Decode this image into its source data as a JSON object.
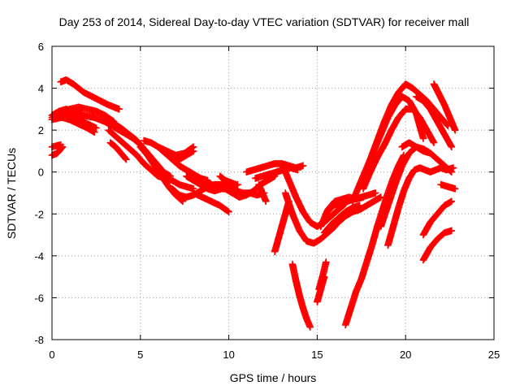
{
  "chart_data": {
    "type": "scatter",
    "title": "Day 253 of 2014, Sidereal Day-to-day VTEC variation (SDTVAR) for receiver mall",
    "xlabel": "GPS time / hours",
    "ylabel": "SDTVAR / TECUs",
    "xlim": [
      0,
      25
    ],
    "ylim": [
      -8,
      6
    ],
    "xticks": [
      0,
      5,
      10,
      15,
      20,
      25
    ],
    "yticks": [
      -8,
      -6,
      -4,
      -2,
      0,
      2,
      4,
      6
    ],
    "xtick_labels": [
      "0",
      "5",
      "10",
      "15",
      "20",
      "25"
    ],
    "ytick_labels": [
      "-8",
      "-6",
      "-4",
      "-2",
      "0",
      "2",
      "4",
      "6"
    ],
    "grid": true,
    "marker": "plus",
    "color": "#ff0000",
    "series": [
      {
        "x": [
          0.5,
          0.8,
          1.2,
          1.8,
          2.5,
          3.2,
          3.8
        ],
        "y": [
          4.3,
          4.4,
          4.2,
          3.8,
          3.5,
          3.2,
          3.0
        ]
      },
      {
        "x": [
          0.0,
          0.5,
          1.0,
          1.5,
          2.0,
          2.5,
          3.0,
          3.5
        ],
        "y": [
          2.6,
          2.8,
          3.0,
          3.1,
          3.0,
          2.9,
          2.7,
          2.4
        ]
      },
      {
        "x": [
          0.0,
          0.4,
          0.8,
          1.2,
          1.8,
          2.4,
          3.0,
          3.6,
          4.0,
          4.6,
          5.0,
          5.4,
          5.8,
          6.2
        ],
        "y": [
          2.7,
          2.9,
          3.0,
          2.9,
          2.7,
          2.6,
          2.4,
          2.1,
          1.9,
          1.6,
          1.3,
          0.9,
          0.5,
          0.1
        ]
      },
      {
        "x": [
          0.0,
          0.5,
          1.0,
          1.5,
          2.0,
          2.5
        ],
        "y": [
          2.5,
          2.6,
          2.7,
          2.5,
          2.3,
          2.1
        ]
      },
      {
        "x": [
          0.2,
          0.6,
          1.0,
          1.5,
          2.0,
          2.4
        ],
        "y": [
          2.8,
          2.6,
          2.5,
          2.3,
          2.1,
          1.9
        ]
      },
      {
        "x": [
          0.0,
          0.5
        ],
        "y": [
          1.2,
          1.3
        ]
      },
      {
        "x": [
          0.0,
          0.3,
          0.6
        ],
        "y": [
          0.8,
          0.9,
          1.2
        ]
      },
      {
        "x": [
          3.5,
          3.9,
          4.2,
          4.5,
          4.8,
          5.1,
          5.4,
          5.7,
          6.0,
          6.3,
          6.7
        ],
        "y": [
          2.3,
          2.1,
          1.9,
          1.7,
          1.5,
          1.2,
          0.9,
          0.6,
          0.3,
          0.0,
          -0.2
        ]
      },
      {
        "x": [
          3.2,
          3.6,
          4.0,
          4.4,
          4.8,
          5.2,
          5.6,
          6.0,
          6.4,
          6.8,
          7.2,
          7.6,
          8.0
        ],
        "y": [
          2.0,
          1.7,
          1.4,
          1.1,
          0.8,
          0.4,
          0.1,
          -0.2,
          -0.3,
          -0.4,
          -0.6,
          -0.7,
          -0.8
        ]
      },
      {
        "x": [
          3.3,
          3.6,
          3.9,
          4.2
        ],
        "y": [
          1.4,
          1.2,
          0.9,
          0.6
        ]
      },
      {
        "x": [
          5.0,
          5.4,
          5.8,
          6.2,
          6.6,
          7.0,
          7.4
        ],
        "y": [
          1.2,
          0.8,
          0.3,
          -0.2,
          -0.7,
          -1.1,
          -1.4
        ]
      },
      {
        "x": [
          5.2,
          5.6,
          6.0,
          6.4,
          6.8,
          7.2,
          7.6,
          8.0,
          8.4,
          8.8
        ],
        "y": [
          1.5,
          1.4,
          1.2,
          0.9,
          0.6,
          0.3,
          0.1,
          -0.1,
          -0.3,
          -0.4
        ]
      },
      {
        "x": [
          6.0,
          6.5,
          7.0,
          7.5,
          8.0
        ],
        "y": [
          1.2,
          1.0,
          0.8,
          0.9,
          1.2
        ]
      },
      {
        "x": [
          6.4,
          6.8,
          7.2,
          7.6,
          8.0
        ],
        "y": [
          0.9,
          0.7,
          0.6,
          0.8,
          1.0
        ]
      },
      {
        "x": [
          6.8,
          7.2,
          7.6,
          8.0,
          8.4,
          8.8,
          9.2,
          9.6,
          10.0
        ],
        "y": [
          -0.8,
          -1.1,
          -1.2,
          -1.1,
          -0.9,
          -0.7,
          -0.6,
          -0.6,
          -0.7
        ]
      },
      {
        "x": [
          7.6,
          8.0,
          8.4,
          8.8,
          9.2,
          9.6,
          10.0,
          10.4,
          10.8,
          11.2,
          11.6,
          12.0
        ],
        "y": [
          -0.2,
          -0.4,
          -0.6,
          -0.8,
          -0.9,
          -0.8,
          -0.8,
          -0.9,
          -1.0,
          -1.0,
          -1.1,
          -1.0
        ]
      },
      {
        "x": [
          8.5,
          9.0,
          9.5,
          10.0,
          10.5
        ],
        "y": [
          -0.5,
          -0.6,
          -0.7,
          -0.8,
          -0.6
        ]
      },
      {
        "x": [
          9.0,
          9.4,
          9.8,
          10.2,
          10.6,
          11.0,
          11.4,
          11.8,
          12.2,
          12.6
        ],
        "y": [
          -0.6,
          -0.7,
          -0.8,
          -1.0,
          -1.2,
          -1.1,
          -0.9,
          -0.6,
          -0.4,
          -0.2
        ]
      },
      {
        "x": [
          8.0,
          8.5,
          9.0,
          9.5,
          10.0
        ],
        "y": [
          -1.0,
          -1.2,
          -1.4,
          -1.6,
          -1.9
        ]
      },
      {
        "x": [
          9.5,
          9.8,
          10.1,
          10.4
        ],
        "y": [
          -0.2,
          -0.4,
          -0.5,
          -0.6
        ]
      },
      {
        "x": [
          11.0,
          11.4,
          11.8,
          12.2,
          12.6,
          13.0,
          13.4,
          13.8,
          14.2
        ],
        "y": [
          0.0,
          0.1,
          0.2,
          0.3,
          0.4,
          0.4,
          0.3,
          0.2,
          0.3
        ]
      },
      {
        "x": [
          11.5,
          11.9,
          12.3,
          12.7,
          13.1,
          13.5,
          13.9
        ],
        "y": [
          -0.3,
          -0.2,
          -0.1,
          0.0,
          0.1,
          0.2,
          0.1
        ]
      },
      {
        "x": [
          11.7,
          11.9,
          12.1
        ],
        "y": [
          -0.6,
          -1.0,
          -1.4
        ]
      },
      {
        "x": [
          12.6,
          12.8,
          13.0,
          13.2,
          13.4
        ],
        "y": [
          -3.8,
          -3.2,
          -2.6,
          -2.0,
          -1.4
        ]
      },
      {
        "x": [
          13.2,
          13.6,
          14.0,
          14.4,
          14.8,
          15.2,
          15.6,
          16.0,
          16.4
        ],
        "y": [
          -1.0,
          -2.0,
          -2.8,
          -3.3,
          -3.4,
          -3.2,
          -2.9,
          -2.6,
          -2.1
        ]
      },
      {
        "x": [
          13.6,
          13.8,
          14.0,
          14.2,
          14.4,
          14.6
        ],
        "y": [
          -4.4,
          -5.2,
          -5.9,
          -6.5,
          -7.0,
          -7.4
        ]
      },
      {
        "x": [
          13.0,
          13.4,
          13.8,
          14.2,
          14.6,
          15.0,
          15.4,
          15.8,
          16.2,
          16.6
        ],
        "y": [
          0.4,
          -0.4,
          -1.2,
          -1.9,
          -2.4,
          -2.6,
          -2.4,
          -2.1,
          -1.8,
          -1.5
        ]
      },
      {
        "x": [
          15.0,
          15.2,
          15.4
        ],
        "y": [
          -6.2,
          -5.6,
          -5.0
        ]
      },
      {
        "x": [
          15.1,
          15.3,
          15.5
        ],
        "y": [
          -5.6,
          -5.0,
          -4.3
        ]
      },
      {
        "x": [
          15.2,
          15.6,
          16.0,
          16.4,
          16.8,
          17.2,
          17.6
        ],
        "y": [
          -2.6,
          -1.8,
          -1.4,
          -1.3,
          -1.2,
          -1.3,
          -1.2
        ]
      },
      {
        "x": [
          15.5,
          15.9,
          16.3,
          16.7,
          17.1,
          17.5,
          17.9,
          18.3
        ],
        "y": [
          -2.0,
          -1.6,
          -1.5,
          -1.4,
          -1.3,
          -1.2,
          -1.1,
          -1.0
        ]
      },
      {
        "x": [
          15.4,
          15.8,
          16.2,
          16.6,
          17.0,
          17.4
        ],
        "y": [
          -2.9,
          -2.5,
          -2.2,
          -1.9,
          -1.7,
          -1.6
        ]
      },
      {
        "x": [
          16.2,
          16.6,
          17.0,
          17.4,
          17.8,
          18.2,
          18.6
        ],
        "y": [
          -2.4,
          -2.1,
          -1.9,
          -1.8,
          -1.6,
          -1.4,
          -1.2
        ]
      },
      {
        "x": [
          16.6,
          16.9,
          17.2,
          17.5,
          17.8,
          18.1,
          18.4,
          18.7,
          19.0,
          19.3,
          19.6,
          19.9
        ],
        "y": [
          -7.3,
          -6.5,
          -5.7,
          -5.1,
          -4.3,
          -3.5,
          -2.6,
          -1.8,
          -1.0,
          -0.3,
          0.3,
          0.8
        ]
      },
      {
        "x": [
          17.0,
          17.4,
          17.8,
          18.2,
          18.6,
          19.0,
          19.4,
          19.8,
          20.2,
          20.6,
          21.0
        ],
        "y": [
          -1.4,
          -0.6,
          0.2,
          1.0,
          1.8,
          2.6,
          3.2,
          3.6,
          3.4,
          2.8,
          1.6
        ]
      },
      {
        "x": [
          17.6,
          18.0,
          18.4,
          18.8,
          19.2,
          19.6,
          20.0,
          20.4,
          20.8,
          21.2,
          21.6
        ],
        "y": [
          -0.8,
          0.0,
          0.7,
          1.3,
          2.0,
          2.6,
          3.0,
          3.0,
          2.6,
          2.0,
          1.4
        ]
      },
      {
        "x": [
          18.0,
          18.4,
          18.8,
          19.2,
          19.6,
          20.0,
          20.4,
          20.8,
          21.2,
          21.6,
          22.0,
          22.4
        ],
        "y": [
          0.6,
          1.5,
          2.4,
          3.2,
          3.8,
          4.2,
          4.0,
          3.7,
          3.4,
          3.0,
          2.6,
          2.2
        ]
      },
      {
        "x": [
          18.6,
          19.0,
          19.4,
          19.8,
          20.2,
          20.6,
          21.0,
          21.4,
          21.8,
          22.2,
          22.6
        ],
        "y": [
          -2.6,
          -1.6,
          -0.6,
          0.3,
          0.9,
          1.2,
          1.1,
          0.9,
          0.6,
          0.3,
          0.0
        ]
      },
      {
        "x": [
          19.0,
          19.3,
          19.6,
          19.9,
          20.2,
          20.5,
          20.8,
          21.1,
          21.4,
          21.7,
          22.0,
          22.3,
          22.7
        ],
        "y": [
          -3.5,
          -2.6,
          -1.7,
          -0.9,
          -0.3,
          0.1,
          0.2,
          0.1,
          0.0,
          0.1,
          0.2,
          0.1,
          0.2
        ]
      },
      {
        "x": [
          19.8,
          20.2,
          20.6,
          21.0,
          21.4
        ],
        "y": [
          1.2,
          1.4,
          1.2,
          1.0,
          0.9
        ]
      },
      {
        "x": [
          21.6,
          21.9,
          22.2,
          22.5,
          22.8
        ],
        "y": [
          4.2,
          3.7,
          3.2,
          2.6,
          2.0
        ]
      },
      {
        "x": [
          20.6,
          21.0,
          21.4,
          21.8,
          22.2,
          22.6
        ],
        "y": [
          3.6,
          3.4,
          3.0,
          2.4,
          1.8,
          1.2
        ]
      },
      {
        "x": [
          21.0,
          21.4,
          21.8,
          22.2,
          22.6
        ],
        "y": [
          -3.0,
          -2.4,
          -2.0,
          -1.6,
          -1.4
        ]
      },
      {
        "x": [
          21.0,
          21.4,
          21.8,
          22.2,
          22.6
        ],
        "y": [
          -4.2,
          -3.6,
          -3.2,
          -2.9,
          -2.8
        ]
      },
      {
        "x": [
          22.0,
          22.4,
          22.8
        ],
        "y": [
          -0.6,
          -0.7,
          -0.8
        ]
      }
    ]
  }
}
